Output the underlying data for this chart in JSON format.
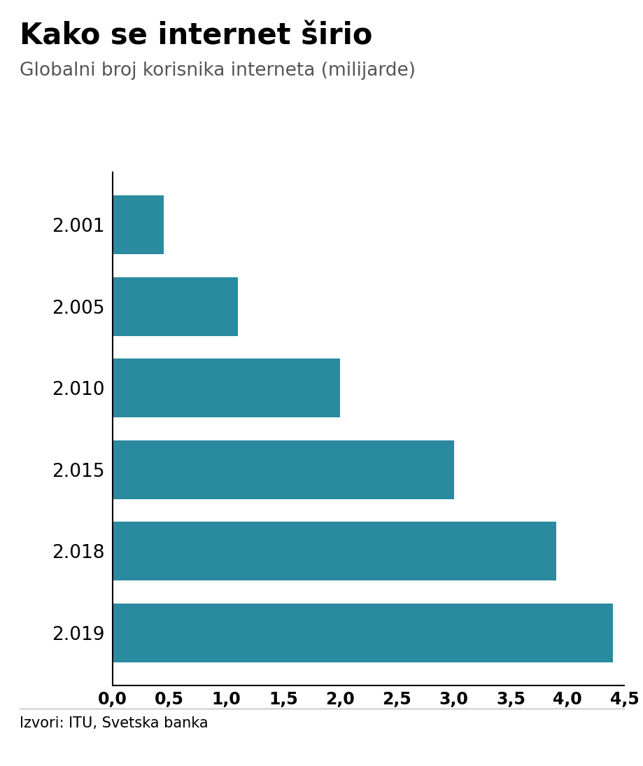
{
  "title": "Kako se internet širio",
  "subtitle": "Globalni broj korisnika interneta (milijarde)",
  "categories": [
    "2.001",
    "2.005",
    "2.010",
    "2.015",
    "2.018",
    "2.019"
  ],
  "values": [
    0.45,
    1.1,
    2.0,
    3.0,
    3.9,
    4.4
  ],
  "bar_color": "#2a8a9f",
  "background_color": "#ffffff",
  "xlim": [
    0,
    4.5
  ],
  "xticks": [
    0.0,
    0.5,
    1.0,
    1.5,
    2.0,
    2.5,
    3.0,
    3.5,
    4.0,
    4.5
  ],
  "xtick_labels": [
    "0,0",
    "0,5",
    "1,0",
    "1,5",
    "2,0",
    "2,5",
    "3,0",
    "3,5",
    "4,0",
    "4,5"
  ],
  "footer_text": "Izvori: ITU, Svetska banka",
  "bbc_box_color": "#6d6d6d",
  "title_fontsize": 30,
  "subtitle_fontsize": 19,
  "tick_fontsize": 17,
  "ytick_fontsize": 19,
  "footer_fontsize": 15
}
